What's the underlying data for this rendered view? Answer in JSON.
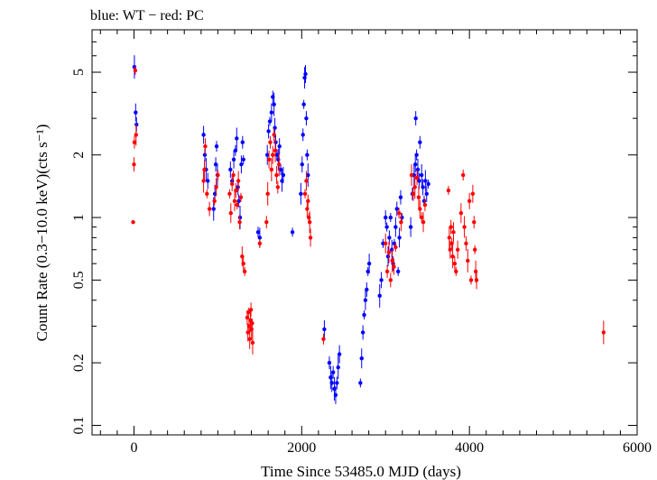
{
  "chart_data": {
    "type": "scatter",
    "title": "blue: WT − red: PC",
    "xlabel": "Time Since 53485.0 MJD (days)",
    "ylabel": "Count Rate (0.3−10.0 keV)(cts s⁻¹)",
    "xlim": [
      -500,
      6000
    ],
    "ylim": [
      0.09,
      8
    ],
    "yscale": "log",
    "x_ticks": [
      0,
      2000,
      4000,
      6000
    ],
    "x_tick_labels": [
      "0",
      "2000",
      "4000",
      "6000"
    ],
    "y_ticks": [
      0.1,
      0.2,
      0.5,
      1,
      2,
      5
    ],
    "y_tick_labels": [
      "0.1",
      "0.2",
      "0.5",
      "1",
      "2",
      "5"
    ],
    "grid": false,
    "series": [
      {
        "color": "#0000ff",
        "points": [
          {
            "x": 5,
            "y": 5.3
          },
          {
            "x": 20,
            "y": 3.2
          },
          {
            "x": 30,
            "y": 2.8
          },
          {
            "x": 830,
            "y": 2.5
          },
          {
            "x": 845,
            "y": 2.0
          },
          {
            "x": 860,
            "y": 1.7
          },
          {
            "x": 880,
            "y": 1.5
          },
          {
            "x": 950,
            "y": 1.1
          },
          {
            "x": 965,
            "y": 1.3
          },
          {
            "x": 975,
            "y": 1.8
          },
          {
            "x": 985,
            "y": 2.2
          },
          {
            "x": 995,
            "y": 1.6
          },
          {
            "x": 1150,
            "y": 1.7
          },
          {
            "x": 1170,
            "y": 1.5
          },
          {
            "x": 1190,
            "y": 1.9
          },
          {
            "x": 1210,
            "y": 2.1
          },
          {
            "x": 1225,
            "y": 2.4
          },
          {
            "x": 1240,
            "y": 1.4
          },
          {
            "x": 1250,
            "y": 1.2
          },
          {
            "x": 1265,
            "y": 1.0
          },
          {
            "x": 1280,
            "y": 1.8
          },
          {
            "x": 1295,
            "y": 2.3
          },
          {
            "x": 1305,
            "y": 1.9
          },
          {
            "x": 1480,
            "y": 0.85
          },
          {
            "x": 1500,
            "y": 0.8
          },
          {
            "x": 1590,
            "y": 2.0
          },
          {
            "x": 1605,
            "y": 2.6
          },
          {
            "x": 1620,
            "y": 2.9
          },
          {
            "x": 1640,
            "y": 3.2
          },
          {
            "x": 1655,
            "y": 3.8
          },
          {
            "x": 1670,
            "y": 3.5
          },
          {
            "x": 1680,
            "y": 2.7
          },
          {
            "x": 1690,
            "y": 2.3
          },
          {
            "x": 1705,
            "y": 2.0
          },
          {
            "x": 1720,
            "y": 1.9
          },
          {
            "x": 1735,
            "y": 2.2
          },
          {
            "x": 1750,
            "y": 1.7
          },
          {
            "x": 1765,
            "y": 1.5
          },
          {
            "x": 1780,
            "y": 1.6
          },
          {
            "x": 1890,
            "y": 0.85
          },
          {
            "x": 1990,
            "y": 1.3
          },
          {
            "x": 2005,
            "y": 1.8
          },
          {
            "x": 2015,
            "y": 2.5
          },
          {
            "x": 2025,
            "y": 3.5
          },
          {
            "x": 2035,
            "y": 4.7
          },
          {
            "x": 2045,
            "y": 4.9
          },
          {
            "x": 2055,
            "y": 3.0
          },
          {
            "x": 2065,
            "y": 2.0
          },
          {
            "x": 2075,
            "y": 1.6
          },
          {
            "x": 2270,
            "y": 0.29
          },
          {
            "x": 2330,
            "y": 0.2
          },
          {
            "x": 2345,
            "y": 0.17
          },
          {
            "x": 2360,
            "y": 0.16
          },
          {
            "x": 2375,
            "y": 0.18
          },
          {
            "x": 2390,
            "y": 0.15
          },
          {
            "x": 2405,
            "y": 0.14
          },
          {
            "x": 2420,
            "y": 0.16
          },
          {
            "x": 2435,
            "y": 0.19
          },
          {
            "x": 2450,
            "y": 0.22
          },
          {
            "x": 2700,
            "y": 0.16
          },
          {
            "x": 2715,
            "y": 0.21
          },
          {
            "x": 2730,
            "y": 0.28
          },
          {
            "x": 2745,
            "y": 0.34
          },
          {
            "x": 2760,
            "y": 0.4
          },
          {
            "x": 2775,
            "y": 0.45
          },
          {
            "x": 2790,
            "y": 0.55
          },
          {
            "x": 2805,
            "y": 0.6
          },
          {
            "x": 2930,
            "y": 0.42
          },
          {
            "x": 2950,
            "y": 0.5
          },
          {
            "x": 2970,
            "y": 0.75
          },
          {
            "x": 3000,
            "y": 1.0
          },
          {
            "x": 3015,
            "y": 0.9
          },
          {
            "x": 3030,
            "y": 0.65
          },
          {
            "x": 3045,
            "y": 0.8
          },
          {
            "x": 3060,
            "y": 1.0
          },
          {
            "x": 3075,
            "y": 0.7
          },
          {
            "x": 3090,
            "y": 0.6
          },
          {
            "x": 3105,
            "y": 0.75
          },
          {
            "x": 3120,
            "y": 0.9
          },
          {
            "x": 3135,
            "y": 1.1
          },
          {
            "x": 3150,
            "y": 0.55
          },
          {
            "x": 3165,
            "y": 0.8
          },
          {
            "x": 3180,
            "y": 1.25
          },
          {
            "x": 3195,
            "y": 1.0
          },
          {
            "x": 3300,
            "y": 0.9
          },
          {
            "x": 3320,
            "y": 1.3
          },
          {
            "x": 3340,
            "y": 1.6
          },
          {
            "x": 3355,
            "y": 1.8
          },
          {
            "x": 3360,
            "y": 3.0
          },
          {
            "x": 3370,
            "y": 2.0
          },
          {
            "x": 3385,
            "y": 1.7
          },
          {
            "x": 3400,
            "y": 1.5
          },
          {
            "x": 3410,
            "y": 2.3
          },
          {
            "x": 3430,
            "y": 1.6
          },
          {
            "x": 3445,
            "y": 1.4
          },
          {
            "x": 3460,
            "y": 1.2
          },
          {
            "x": 3475,
            "y": 1.5
          },
          {
            "x": 3490,
            "y": 1.3
          },
          {
            "x": 3510,
            "y": 1.45
          }
        ]
      },
      {
        "color": "#ff0000",
        "points": [
          {
            "x": -10,
            "y": 0.95
          },
          {
            "x": 0,
            "y": 1.8
          },
          {
            "x": 5,
            "y": 2.3
          },
          {
            "x": 15,
            "y": 5.1
          },
          {
            "x": 25,
            "y": 2.5
          },
          {
            "x": 830,
            "y": 1.5
          },
          {
            "x": 840,
            "y": 1.7
          },
          {
            "x": 850,
            "y": 2.2
          },
          {
            "x": 870,
            "y": 1.3
          },
          {
            "x": 900,
            "y": 1.1
          },
          {
            "x": 960,
            "y": 1.2
          },
          {
            "x": 980,
            "y": 1.4
          },
          {
            "x": 1000,
            "y": 1.6
          },
          {
            "x": 1140,
            "y": 1.3
          },
          {
            "x": 1155,
            "y": 1.05
          },
          {
            "x": 1170,
            "y": 1.45
          },
          {
            "x": 1185,
            "y": 1.6
          },
          {
            "x": 1200,
            "y": 1.2
          },
          {
            "x": 1215,
            "y": 1.35
          },
          {
            "x": 1230,
            "y": 1.15
          },
          {
            "x": 1245,
            "y": 1.5
          },
          {
            "x": 1260,
            "y": 0.95
          },
          {
            "x": 1275,
            "y": 1.25
          },
          {
            "x": 1290,
            "y": 0.65
          },
          {
            "x": 1305,
            "y": 0.6
          },
          {
            "x": 1320,
            "y": 0.55
          },
          {
            "x": 1350,
            "y": 0.33
          },
          {
            "x": 1358,
            "y": 0.28
          },
          {
            "x": 1365,
            "y": 0.35
          },
          {
            "x": 1372,
            "y": 0.3
          },
          {
            "x": 1380,
            "y": 0.26
          },
          {
            "x": 1388,
            "y": 0.32
          },
          {
            "x": 1395,
            "y": 0.36
          },
          {
            "x": 1402,
            "y": 0.29
          },
          {
            "x": 1410,
            "y": 0.31
          },
          {
            "x": 1415,
            "y": 0.25
          },
          {
            "x": 1500,
            "y": 0.75
          },
          {
            "x": 1580,
            "y": 0.95
          },
          {
            "x": 1595,
            "y": 1.3
          },
          {
            "x": 1610,
            "y": 1.9
          },
          {
            "x": 1625,
            "y": 2.3
          },
          {
            "x": 1640,
            "y": 1.7
          },
          {
            "x": 1655,
            "y": 2.0
          },
          {
            "x": 1670,
            "y": 2.5
          },
          {
            "x": 1685,
            "y": 2.1
          },
          {
            "x": 1700,
            "y": 1.6
          },
          {
            "x": 1715,
            "y": 1.4
          },
          {
            "x": 1730,
            "y": 1.8
          },
          {
            "x": 2040,
            "y": 1.3
          },
          {
            "x": 2055,
            "y": 1.5
          },
          {
            "x": 2065,
            "y": 1.1
          },
          {
            "x": 2075,
            "y": 1.2
          },
          {
            "x": 2085,
            "y": 1.0
          },
          {
            "x": 2095,
            "y": 0.95
          },
          {
            "x": 2105,
            "y": 0.8
          },
          {
            "x": 2260,
            "y": 0.26
          },
          {
            "x": 3000,
            "y": 0.75
          },
          {
            "x": 3020,
            "y": 0.55
          },
          {
            "x": 3040,
            "y": 0.68
          },
          {
            "x": 3060,
            "y": 0.5
          },
          {
            "x": 3080,
            "y": 0.62
          },
          {
            "x": 3100,
            "y": 0.58
          },
          {
            "x": 3120,
            "y": 0.72
          },
          {
            "x": 3160,
            "y": 1.05
          },
          {
            "x": 3185,
            "y": 0.95
          },
          {
            "x": 3310,
            "y": 1.6
          },
          {
            "x": 3330,
            "y": 1.3
          },
          {
            "x": 3350,
            "y": 1.4
          },
          {
            "x": 3375,
            "y": 1.55
          },
          {
            "x": 3395,
            "y": 1.25
          },
          {
            "x": 3410,
            "y": 1.1
          },
          {
            "x": 3430,
            "y": 1.0
          },
          {
            "x": 3450,
            "y": 0.95
          },
          {
            "x": 3470,
            "y": 1.15
          },
          {
            "x": 3750,
            "y": 1.35
          },
          {
            "x": 3760,
            "y": 0.8
          },
          {
            "x": 3770,
            "y": 0.7
          },
          {
            "x": 3780,
            "y": 0.9
          },
          {
            "x": 3790,
            "y": 0.75
          },
          {
            "x": 3800,
            "y": 0.65
          },
          {
            "x": 3810,
            "y": 0.85
          },
          {
            "x": 3825,
            "y": 0.6
          },
          {
            "x": 3840,
            "y": 0.55
          },
          {
            "x": 3860,
            "y": 0.7
          },
          {
            "x": 3900,
            "y": 1.05
          },
          {
            "x": 3925,
            "y": 1.6
          },
          {
            "x": 3940,
            "y": 0.9
          },
          {
            "x": 3960,
            "y": 0.75
          },
          {
            "x": 3980,
            "y": 0.62
          },
          {
            "x": 4000,
            "y": 1.2
          },
          {
            "x": 4020,
            "y": 0.5
          },
          {
            "x": 4040,
            "y": 1.3
          },
          {
            "x": 4055,
            "y": 0.95
          },
          {
            "x": 4065,
            "y": 0.7
          },
          {
            "x": 4075,
            "y": 0.55
          },
          {
            "x": 4085,
            "y": 0.5
          },
          {
            "x": 5600,
            "y": 0.28
          }
        ]
      }
    ]
  }
}
